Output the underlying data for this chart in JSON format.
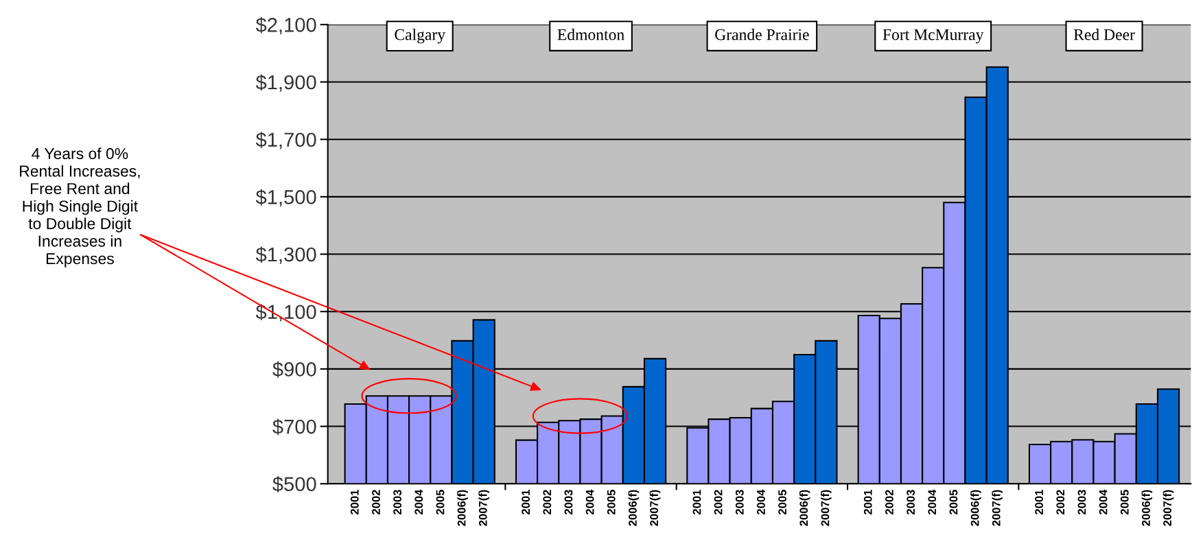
{
  "chart_data": {
    "type": "bar",
    "categories": [
      "2001",
      "2002",
      "2003",
      "2004",
      "2005",
      "2006(f)",
      "2007(f)",
      null,
      "2001",
      "2002",
      "2003",
      "2004",
      "2005",
      "2006(f)",
      "2007(f)",
      null,
      "2001",
      "2002",
      "2003",
      "2004",
      "2005",
      "2006(f)",
      "2007(f)",
      null,
      "2001",
      "2002",
      "2003",
      "2004",
      "2005",
      "2006(f)",
      "2007(f)",
      null,
      "2001",
      "2002",
      "2003",
      "2004",
      "2005",
      "2006(f)",
      "2007(f)"
    ],
    "values": [
      778,
      806,
      806,
      806,
      806,
      998,
      1071,
      null,
      652,
      714,
      720,
      725,
      736,
      838,
      936,
      null,
      695,
      725,
      730,
      762,
      787,
      950,
      998,
      null,
      1086,
      1076,
      1127,
      1253,
      1480,
      1847,
      1952,
      null,
      637,
      647,
      653,
      647,
      674,
      778,
      830
    ],
    "colors": [
      "#9999ff",
      "#9999ff",
      "#9999ff",
      "#9999ff",
      "#9999ff",
      "#0066cc",
      "#0066cc",
      null,
      "#9999ff",
      "#9999ff",
      "#9999ff",
      "#9999ff",
      "#9999ff",
      "#0066cc",
      "#0066cc",
      null,
      "#9999ff",
      "#9999ff",
      "#9999ff",
      "#9999ff",
      "#9999ff",
      "#0066cc",
      "#0066cc",
      null,
      "#9999ff",
      "#9999ff",
      "#9999ff",
      "#9999ff",
      "#9999ff",
      "#0066cc",
      "#0066cc",
      null,
      "#9999ff",
      "#9999ff",
      "#9999ff",
      "#9999ff",
      "#9999ff",
      "#0066cc",
      "#0066cc"
    ],
    "ylim": [
      500,
      2100
    ],
    "yticks": [
      {
        "value": 500,
        "label": "$500"
      },
      {
        "value": 700,
        "label": "$700"
      },
      {
        "value": 900,
        "label": "$900"
      },
      {
        "value": 1100,
        "label": "$1,100"
      },
      {
        "value": 1300,
        "label": "$1,300"
      },
      {
        "value": 1500,
        "label": "$1,500"
      },
      {
        "value": 1700,
        "label": "$1,700"
      },
      {
        "value": 1900,
        "label": "$1,900"
      },
      {
        "value": 2100,
        "label": "$2,100"
      }
    ],
    "grid": "y",
    "annotations": [
      "Calgary",
      "Edmonton",
      "Grande Prairie",
      "Fort McMurray",
      "Red Deer",
      "4 Years of 0% Rental Increases, Free Rent and High Single Digit to Double Digit Increases in Expenses"
    ]
  }
}
